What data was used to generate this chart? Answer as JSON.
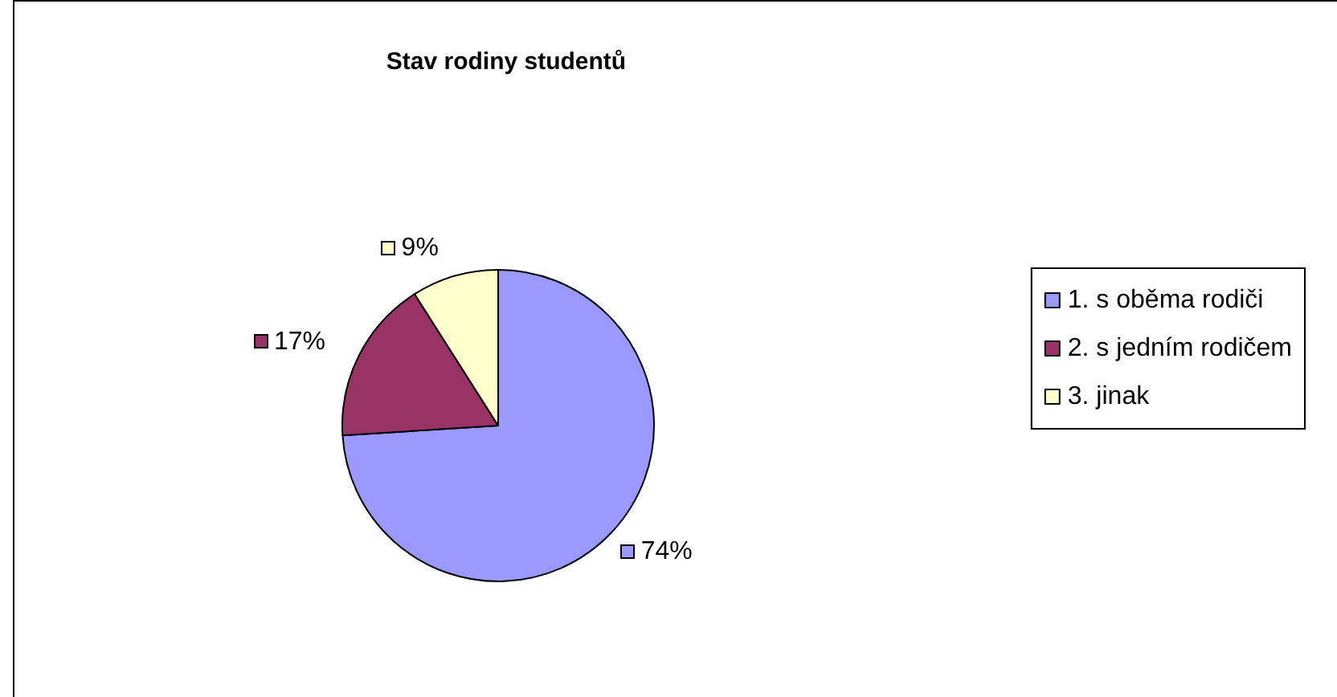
{
  "chart_data": {
    "type": "pie",
    "title": "Stav rodiny studentů",
    "categories": [
      "1. s oběma rodiči",
      "2. s jedním rodičem",
      "3. jinak"
    ],
    "values": [
      74,
      17,
      9
    ],
    "colors": [
      "#9999ff",
      "#993366",
      "#ffffcc"
    ],
    "value_labels": [
      "74%",
      "17%",
      "9%"
    ],
    "legend": "right"
  }
}
